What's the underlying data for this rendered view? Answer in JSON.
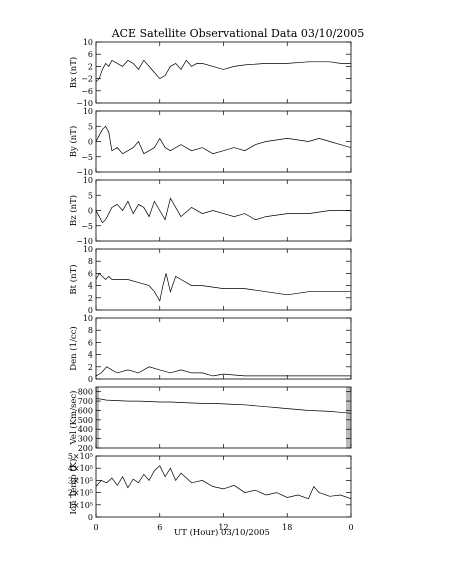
{
  "chart_data": {
    "type": "line",
    "title": "ACE Satellite Observational Data   03/10/2005",
    "xlabel": "UT (Hour)   03/10/2005",
    "x_ticks": [
      "0",
      "6",
      "12",
      "18",
      "0"
    ],
    "xlim": [
      0,
      24
    ],
    "grid": false,
    "panels": [
      {
        "key": "bx",
        "ylabel": "Bx (nT)",
        "ylim": [
          -10,
          10
        ],
        "ticks": [
          -10,
          -6,
          -2,
          2,
          6,
          10
        ],
        "tick_labels": [
          "−10",
          "−6",
          "−2",
          "2",
          "6",
          "10"
        ],
        "x": [
          0,
          0.3,
          0.6,
          0.9,
          1.2,
          1.5,
          2,
          2.5,
          3,
          3.5,
          4,
          4.5,
          5,
          5.5,
          6,
          6.5,
          7,
          7.5,
          8,
          8.5,
          9,
          9.5,
          10,
          11,
          12,
          13,
          14,
          16,
          18,
          20,
          22,
          23,
          24
        ],
        "y": [
          -3,
          -2,
          1,
          3,
          2,
          4,
          3,
          2,
          4,
          3,
          1,
          4,
          2,
          0,
          -2,
          -1,
          2,
          3,
          1,
          4,
          2,
          3,
          3,
          2,
          1,
          2,
          2.5,
          3,
          3,
          3.5,
          3.5,
          3,
          3
        ]
      },
      {
        "key": "by",
        "ylabel": "By (nT)",
        "ylim": [
          -10,
          10
        ],
        "ticks": [
          -10,
          -5,
          0,
          5,
          10
        ],
        "tick_labels": [
          "−10",
          "−5",
          "0",
          "5",
          "10"
        ],
        "x": [
          0,
          0.3,
          0.6,
          0.9,
          1.2,
          1.5,
          2,
          2.5,
          3,
          3.5,
          4,
          4.5,
          5,
          5.5,
          6,
          6.5,
          7,
          8,
          9,
          10,
          11,
          12,
          13,
          14,
          15,
          16,
          18,
          20,
          21,
          22,
          23,
          24
        ],
        "y": [
          0,
          2,
          4,
          5,
          3,
          -3,
          -2,
          -4,
          -3,
          -2,
          0,
          -4,
          -3,
          -2,
          1,
          -2,
          -3,
          -1,
          -3,
          -2,
          -4,
          -3,
          -2,
          -3,
          -1,
          0,
          1,
          0,
          1,
          0,
          -1,
          -2
        ]
      },
      {
        "key": "bz",
        "ylabel": "Bz (nT)",
        "ylim": [
          -10,
          10
        ],
        "ticks": [
          -10,
          -5,
          0,
          5,
          10
        ],
        "tick_labels": [
          "−10",
          "−5",
          "0",
          "5",
          "10"
        ],
        "x": [
          0,
          0.3,
          0.6,
          0.9,
          1.2,
          1.5,
          2,
          2.5,
          3,
          3.5,
          4,
          4.5,
          5,
          5.5,
          6,
          6.5,
          7,
          7.5,
          8,
          9,
          10,
          11,
          12,
          13,
          14,
          15,
          16,
          18,
          20,
          22,
          23,
          24
        ],
        "y": [
          0,
          -2,
          -4,
          -3,
          -1,
          1,
          2,
          0,
          3,
          -1,
          2,
          1,
          -2,
          3,
          0,
          -3,
          4,
          1,
          -2,
          1,
          -1,
          0,
          -1,
          -2,
          -1,
          -3,
          -2,
          -1,
          -1,
          0,
          0,
          0
        ]
      },
      {
        "key": "bt",
        "ylabel": "Bt (nT)",
        "ylim": [
          0,
          10
        ],
        "ticks": [
          0,
          2,
          4,
          6,
          8,
          10
        ],
        "tick_labels": [
          "0",
          "2",
          "4",
          "6",
          "8",
          "10"
        ],
        "x": [
          0,
          0.3,
          0.6,
          0.9,
          1.2,
          1.5,
          2,
          3,
          4,
          5,
          5.5,
          6,
          6.3,
          6.6,
          7,
          7.5,
          8,
          8.5,
          9,
          10,
          12,
          14,
          16,
          18,
          20,
          22,
          24
        ],
        "y": [
          5,
          6,
          5.5,
          5,
          5.5,
          5,
          5,
          5,
          4.5,
          4,
          3,
          1.5,
          4,
          6,
          3,
          5.5,
          5,
          4.5,
          4,
          4,
          3.5,
          3.5,
          3,
          2.5,
          3,
          3,
          3
        ]
      },
      {
        "key": "den",
        "ylabel": "Den (1/cc)",
        "ylim": [
          0,
          10
        ],
        "ticks": [
          0,
          2,
          4,
          6,
          8,
          10
        ],
        "tick_labels": [
          "0",
          "2",
          "4",
          "6",
          "8",
          "10"
        ],
        "x": [
          0,
          0.5,
          1,
          1.5,
          2,
          3,
          4,
          5,
          6,
          7,
          8,
          9,
          10,
          11,
          12,
          14,
          16,
          18,
          20,
          22,
          24
        ],
        "y": [
          0.5,
          1,
          2,
          1.5,
          1,
          1.5,
          1,
          2,
          1.5,
          1,
          1.5,
          1,
          1,
          0.5,
          0.8,
          0.5,
          0.5,
          0.5,
          0.5,
          0.5,
          0.5
        ]
      },
      {
        "key": "vel",
        "ylabel": "Vel (Km/sec)",
        "ylim": [
          200,
          850
        ],
        "ticks": [
          200,
          300,
          400,
          500,
          600,
          700,
          800
        ],
        "tick_labels": [
          "200",
          "300",
          "400",
          "500",
          "600",
          "700",
          "800"
        ],
        "x": [
          0,
          1,
          2,
          3,
          4,
          5,
          6,
          7,
          8,
          9,
          10,
          11,
          12,
          13,
          14,
          15,
          16,
          17,
          18,
          19,
          20,
          21,
          22,
          23,
          24
        ],
        "y": [
          730,
          710,
          705,
          700,
          700,
          695,
          690,
          690,
          685,
          680,
          675,
          675,
          670,
          665,
          660,
          650,
          640,
          630,
          620,
          610,
          600,
          595,
          590,
          580,
          570
        ]
      },
      {
        "key": "temp",
        "ylabel": "Ion Temp (K)",
        "ylim": [
          0,
          500000
        ],
        "ticks": [
          0,
          100000,
          200000,
          300000,
          400000,
          500000
        ],
        "tick_labels": [
          "0",
          "1×10⁵",
          "2×10⁵",
          "3×10⁵",
          "4×10⁵",
          "5×10⁵"
        ],
        "x": [
          0,
          0.5,
          1,
          1.5,
          2,
          2.5,
          3,
          3.5,
          4,
          4.5,
          5,
          5.5,
          6,
          6.5,
          7,
          7.5,
          8,
          9,
          10,
          11,
          12,
          13,
          14,
          15,
          16,
          17,
          18,
          19,
          20,
          20.5,
          21,
          22,
          23,
          24
        ],
        "y": [
          250000,
          300000,
          280000,
          320000,
          260000,
          330000,
          240000,
          310000,
          280000,
          350000,
          300000,
          380000,
          420000,
          330000,
          400000,
          300000,
          360000,
          280000,
          300000,
          250000,
          230000,
          260000,
          200000,
          220000,
          180000,
          200000,
          160000,
          180000,
          150000,
          250000,
          200000,
          170000,
          180000,
          150000
        ]
      }
    ]
  }
}
